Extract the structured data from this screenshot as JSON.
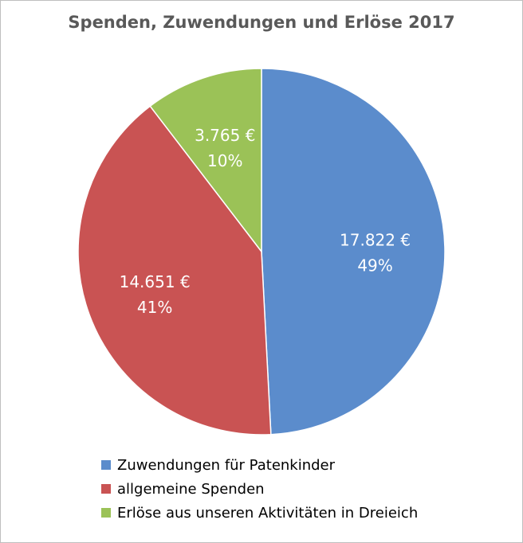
{
  "chart_data": {
    "type": "pie",
    "title": "Spenden, Zuwendungen und Erlöse 2017",
    "series": [
      {
        "name": "Zuwendungen für Patenkinder",
        "value": 17822,
        "value_label": "17.822 €",
        "percent_label": "49%",
        "color": "#5b8ccc"
      },
      {
        "name": "allgemeine Spenden",
        "value": 14651,
        "value_label": "14.651 €",
        "percent_label": "41%",
        "color": "#c95353"
      },
      {
        "name": "Erlöse aus unseren Aktivitäten in Dreieich",
        "value": 3765,
        "value_label": "3.765 €",
        "percent_label": "10%",
        "color": "#9bc257"
      }
    ],
    "legend_position": "bottom"
  }
}
